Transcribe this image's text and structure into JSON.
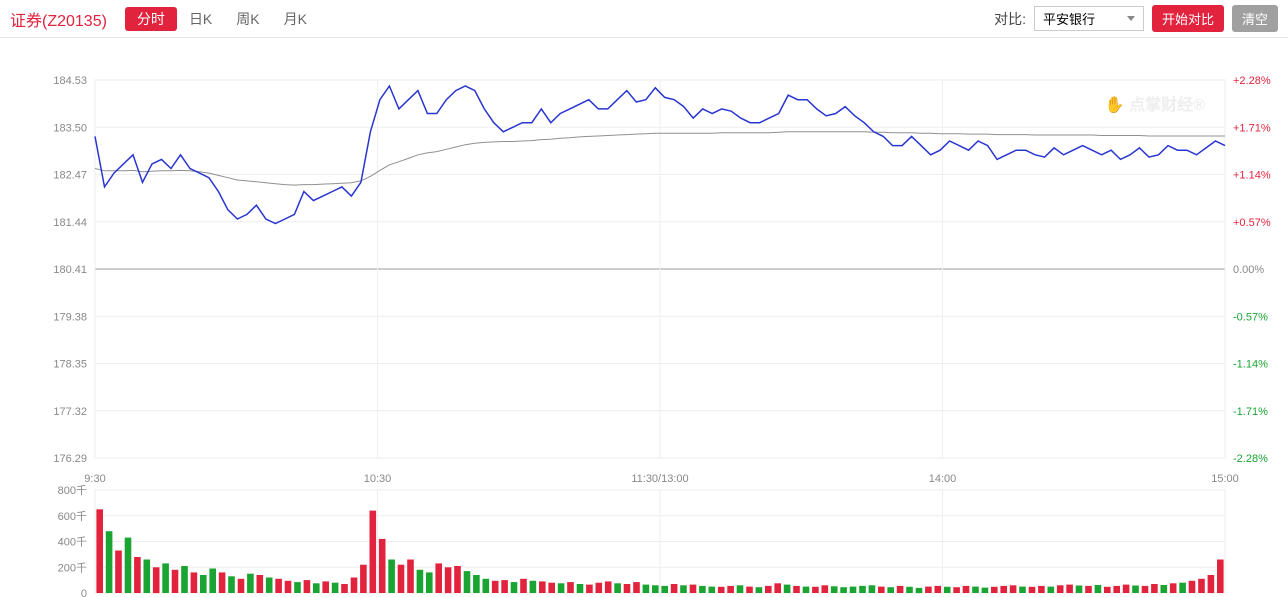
{
  "header": {
    "title": "证券(Z20135)",
    "tabs": [
      "分时",
      "日K",
      "周K",
      "月K"
    ],
    "active_tab_index": 0,
    "compare_label": "对比:",
    "compare_value": "平安银行",
    "start_compare_btn": "开始对比",
    "clear_btn": "清空"
  },
  "watermark": "点掌财经",
  "colors": {
    "accent": "#e2233e",
    "up": "#e2233e",
    "down": "#1aa431",
    "price_line": "#2935d0",
    "avg_line": "#909090",
    "grid": "#eeeeee",
    "zero_line": "#999999",
    "bg": "#ffffff",
    "text_muted": "#888888"
  },
  "price_chart": {
    "type": "intraday-line",
    "y_ticks": [
      184.53,
      183.5,
      182.47,
      181.44,
      180.41,
      179.38,
      178.35,
      177.32,
      176.29
    ],
    "r_ticks": [
      {
        "label": "+2.28%",
        "color": "#e2233e"
      },
      {
        "label": "+1.71%",
        "color": "#e2233e"
      },
      {
        "label": "+1.14%",
        "color": "#e2233e"
      },
      {
        "label": "+0.57%",
        "color": "#e2233e"
      },
      {
        "label": "0.00%",
        "color": "#888888"
      },
      {
        "label": "-0.57%",
        "color": "#1aa431"
      },
      {
        "label": "-1.14%",
        "color": "#1aa431"
      },
      {
        "label": "-1.71%",
        "color": "#1aa431"
      },
      {
        "label": "-2.28%",
        "color": "#1aa431"
      }
    ],
    "x_ticks": [
      "9:30",
      "10:30",
      "11:30/13:00",
      "14:00",
      "15:00"
    ],
    "ymin": 176.29,
    "ymax": 184.53,
    "baseline": 180.41,
    "price_series": [
      183.3,
      182.2,
      182.5,
      182.7,
      182.9,
      182.3,
      182.7,
      182.8,
      182.6,
      182.9,
      182.6,
      182.5,
      182.4,
      182.1,
      181.7,
      181.5,
      181.6,
      181.8,
      181.5,
      181.4,
      181.5,
      181.6,
      182.1,
      181.9,
      182.0,
      182.1,
      182.2,
      182.0,
      182.3,
      183.4,
      184.1,
      184.4,
      183.9,
      184.1,
      184.3,
      183.8,
      183.8,
      184.1,
      184.3,
      184.4,
      184.3,
      183.9,
      183.6,
      183.4,
      183.5,
      183.6,
      183.6,
      183.9,
      183.6,
      183.8,
      183.9,
      184.0,
      184.1,
      183.9,
      183.9,
      184.1,
      184.3,
      184.05,
      184.1,
      184.36,
      184.15,
      184.1,
      183.95,
      183.7,
      183.9,
      183.8,
      183.9,
      183.85,
      183.7,
      183.6,
      183.6,
      183.7,
      183.8,
      184.2,
      184.1,
      184.1,
      183.9,
      183.75,
      183.8,
      183.95,
      183.75,
      183.6,
      183.4,
      183.3,
      183.1,
      183.1,
      183.3,
      183.1,
      182.9,
      183.0,
      183.2,
      183.1,
      183.0,
      183.2,
      183.1,
      182.8,
      182.9,
      183.0,
      183.0,
      182.9,
      182.85,
      183.05,
      182.9,
      183.0,
      183.1,
      183.0,
      182.9,
      183.0,
      182.8,
      182.9,
      183.05,
      182.85,
      182.9,
      183.1,
      183.0,
      183.0,
      182.9,
      183.05,
      183.2,
      183.1
    ],
    "avg_series": [
      182.6,
      182.55,
      182.55,
      182.55,
      182.56,
      182.53,
      182.54,
      182.55,
      182.55,
      182.56,
      182.55,
      182.53,
      182.5,
      182.45,
      182.4,
      182.35,
      182.33,
      182.31,
      182.29,
      182.27,
      182.25,
      182.24,
      182.25,
      182.25,
      182.26,
      182.27,
      182.28,
      182.29,
      182.33,
      182.43,
      182.56,
      182.68,
      182.75,
      182.82,
      182.9,
      182.94,
      182.97,
      183.02,
      183.07,
      183.12,
      183.15,
      183.17,
      183.18,
      183.19,
      183.19,
      183.2,
      183.21,
      183.23,
      183.24,
      183.26,
      183.27,
      183.29,
      183.3,
      183.31,
      183.32,
      183.33,
      183.34,
      183.35,
      183.36,
      183.37,
      183.37,
      183.37,
      183.37,
      183.37,
      183.37,
      183.37,
      183.38,
      183.38,
      183.38,
      183.38,
      183.38,
      183.38,
      183.39,
      183.4,
      183.4,
      183.4,
      183.4,
      183.4,
      183.4,
      183.4,
      183.4,
      183.4,
      183.39,
      183.39,
      183.38,
      183.38,
      183.38,
      183.37,
      183.37,
      183.36,
      183.36,
      183.36,
      183.35,
      183.35,
      183.35,
      183.34,
      183.34,
      183.34,
      183.34,
      183.33,
      183.33,
      183.33,
      183.33,
      183.33,
      183.33,
      183.33,
      183.32,
      183.32,
      183.32,
      183.32,
      183.32,
      183.31,
      183.31,
      183.31,
      183.31,
      183.31,
      183.31,
      183.31,
      183.31,
      183.31
    ]
  },
  "volume_chart": {
    "type": "bar",
    "y_ticks": [
      "800千",
      "600千",
      "400千",
      "200千",
      "0"
    ],
    "ymax": 800,
    "bars": [
      {
        "v": 650,
        "c": "u"
      },
      {
        "v": 480,
        "c": "d"
      },
      {
        "v": 330,
        "c": "u"
      },
      {
        "v": 430,
        "c": "d"
      },
      {
        "v": 280,
        "c": "u"
      },
      {
        "v": 260,
        "c": "d"
      },
      {
        "v": 200,
        "c": "u"
      },
      {
        "v": 230,
        "c": "d"
      },
      {
        "v": 180,
        "c": "u"
      },
      {
        "v": 210,
        "c": "d"
      },
      {
        "v": 160,
        "c": "u"
      },
      {
        "v": 140,
        "c": "d"
      },
      {
        "v": 190,
        "c": "d"
      },
      {
        "v": 160,
        "c": "u"
      },
      {
        "v": 130,
        "c": "d"
      },
      {
        "v": 110,
        "c": "u"
      },
      {
        "v": 150,
        "c": "d"
      },
      {
        "v": 140,
        "c": "u"
      },
      {
        "v": 120,
        "c": "d"
      },
      {
        "v": 110,
        "c": "u"
      },
      {
        "v": 95,
        "c": "u"
      },
      {
        "v": 85,
        "c": "d"
      },
      {
        "v": 100,
        "c": "u"
      },
      {
        "v": 75,
        "c": "d"
      },
      {
        "v": 90,
        "c": "u"
      },
      {
        "v": 80,
        "c": "d"
      },
      {
        "v": 70,
        "c": "u"
      },
      {
        "v": 120,
        "c": "u"
      },
      {
        "v": 220,
        "c": "u"
      },
      {
        "v": 640,
        "c": "u"
      },
      {
        "v": 420,
        "c": "u"
      },
      {
        "v": 260,
        "c": "d"
      },
      {
        "v": 220,
        "c": "u"
      },
      {
        "v": 260,
        "c": "u"
      },
      {
        "v": 180,
        "c": "d"
      },
      {
        "v": 160,
        "c": "d"
      },
      {
        "v": 230,
        "c": "u"
      },
      {
        "v": 200,
        "c": "u"
      },
      {
        "v": 210,
        "c": "u"
      },
      {
        "v": 170,
        "c": "d"
      },
      {
        "v": 140,
        "c": "d"
      },
      {
        "v": 110,
        "c": "d"
      },
      {
        "v": 95,
        "c": "u"
      },
      {
        "v": 100,
        "c": "u"
      },
      {
        "v": 85,
        "c": "d"
      },
      {
        "v": 110,
        "c": "u"
      },
      {
        "v": 95,
        "c": "d"
      },
      {
        "v": 90,
        "c": "u"
      },
      {
        "v": 80,
        "c": "u"
      },
      {
        "v": 75,
        "c": "d"
      },
      {
        "v": 85,
        "c": "u"
      },
      {
        "v": 70,
        "c": "d"
      },
      {
        "v": 65,
        "c": "u"
      },
      {
        "v": 80,
        "c": "u"
      },
      {
        "v": 90,
        "c": "u"
      },
      {
        "v": 75,
        "c": "d"
      },
      {
        "v": 70,
        "c": "u"
      },
      {
        "v": 85,
        "c": "u"
      },
      {
        "v": 65,
        "c": "d"
      },
      {
        "v": 60,
        "c": "d"
      },
      {
        "v": 55,
        "c": "d"
      },
      {
        "v": 70,
        "c": "u"
      },
      {
        "v": 60,
        "c": "d"
      },
      {
        "v": 65,
        "c": "u"
      },
      {
        "v": 55,
        "c": "d"
      },
      {
        "v": 50,
        "c": "d"
      },
      {
        "v": 48,
        "c": "u"
      },
      {
        "v": 55,
        "c": "u"
      },
      {
        "v": 60,
        "c": "d"
      },
      {
        "v": 50,
        "c": "u"
      },
      {
        "v": 45,
        "c": "d"
      },
      {
        "v": 55,
        "c": "u"
      },
      {
        "v": 75,
        "c": "u"
      },
      {
        "v": 65,
        "c": "d"
      },
      {
        "v": 55,
        "c": "u"
      },
      {
        "v": 50,
        "c": "d"
      },
      {
        "v": 48,
        "c": "u"
      },
      {
        "v": 60,
        "c": "u"
      },
      {
        "v": 52,
        "c": "d"
      },
      {
        "v": 45,
        "c": "d"
      },
      {
        "v": 50,
        "c": "d"
      },
      {
        "v": 55,
        "c": "d"
      },
      {
        "v": 60,
        "c": "d"
      },
      {
        "v": 50,
        "c": "u"
      },
      {
        "v": 45,
        "c": "d"
      },
      {
        "v": 55,
        "c": "u"
      },
      {
        "v": 48,
        "c": "d"
      },
      {
        "v": 40,
        "c": "d"
      },
      {
        "v": 50,
        "c": "u"
      },
      {
        "v": 55,
        "c": "u"
      },
      {
        "v": 48,
        "c": "d"
      },
      {
        "v": 45,
        "c": "u"
      },
      {
        "v": 55,
        "c": "u"
      },
      {
        "v": 50,
        "c": "d"
      },
      {
        "v": 42,
        "c": "d"
      },
      {
        "v": 48,
        "c": "u"
      },
      {
        "v": 55,
        "c": "u"
      },
      {
        "v": 60,
        "c": "u"
      },
      {
        "v": 50,
        "c": "d"
      },
      {
        "v": 48,
        "c": "u"
      },
      {
        "v": 55,
        "c": "u"
      },
      {
        "v": 50,
        "c": "d"
      },
      {
        "v": 60,
        "c": "u"
      },
      {
        "v": 65,
        "c": "u"
      },
      {
        "v": 58,
        "c": "d"
      },
      {
        "v": 55,
        "c": "u"
      },
      {
        "v": 62,
        "c": "d"
      },
      {
        "v": 48,
        "c": "u"
      },
      {
        "v": 55,
        "c": "u"
      },
      {
        "v": 65,
        "c": "u"
      },
      {
        "v": 58,
        "c": "d"
      },
      {
        "v": 55,
        "c": "u"
      },
      {
        "v": 70,
        "c": "u"
      },
      {
        "v": 62,
        "c": "d"
      },
      {
        "v": 75,
        "c": "u"
      },
      {
        "v": 80,
        "c": "d"
      },
      {
        "v": 95,
        "c": "u"
      },
      {
        "v": 110,
        "c": "u"
      },
      {
        "v": 140,
        "c": "u"
      },
      {
        "v": 260,
        "c": "u"
      }
    ]
  }
}
